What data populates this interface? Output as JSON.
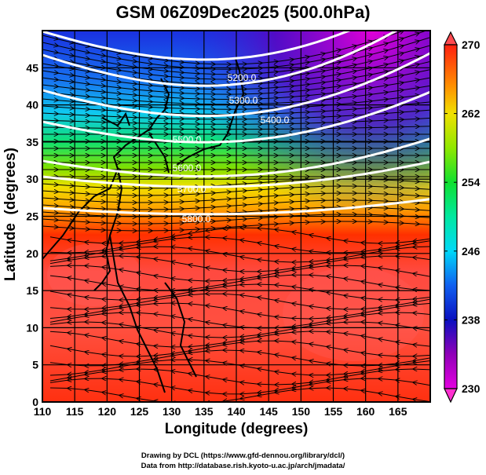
{
  "title": "GSM 06Z09Dec2025 (500.0hPa)",
  "chart_data": {
    "type": "heatmap",
    "title": "GSM 06Z09Dec2025 (500.0hPa)",
    "xlabel": "Longitude (degrees)",
    "ylabel": "Latitude  (degrees)",
    "xlim": [
      110,
      170
    ],
    "ylim": [
      0,
      50
    ],
    "x_ticks": [
      "110",
      "115",
      "120",
      "125",
      "130",
      "135",
      "140",
      "145",
      "150",
      "155",
      "160",
      "165"
    ],
    "y_ticks": [
      "0",
      "5",
      "10",
      "15",
      "20",
      "25",
      "30",
      "35",
      "40",
      "45"
    ],
    "grid": true,
    "shading_variable_range": [
      230,
      270
    ],
    "colorbar": {
      "ticks": [
        "230",
        "238",
        "246",
        "254",
        "262",
        "270"
      ],
      "colors": [
        "#e400e0",
        "#8a00b0",
        "#0a10c8",
        "#1560f0",
        "#00c8f0",
        "#00e8b0",
        "#10e040",
        "#80e000",
        "#e8f000",
        "#ffb000",
        "#ff6000",
        "#ff2000",
        "#ff4040"
      ],
      "placement": "right"
    },
    "contours": [
      {
        "label": "5200.0"
      },
      {
        "label": "5300.0"
      },
      {
        "label": "5400.0"
      },
      {
        "label": "5500.0"
      },
      {
        "label": "5600.0"
      },
      {
        "label": "5700.0"
      },
      {
        "label": "5800.0"
      }
    ]
  },
  "credits": [
    "Drawing by DCL (https://www.gfd-dennou.org/library/dcl/)",
    "Data from http://database.rish.kyoto-u.ac.jp/arch/jmadata/"
  ]
}
